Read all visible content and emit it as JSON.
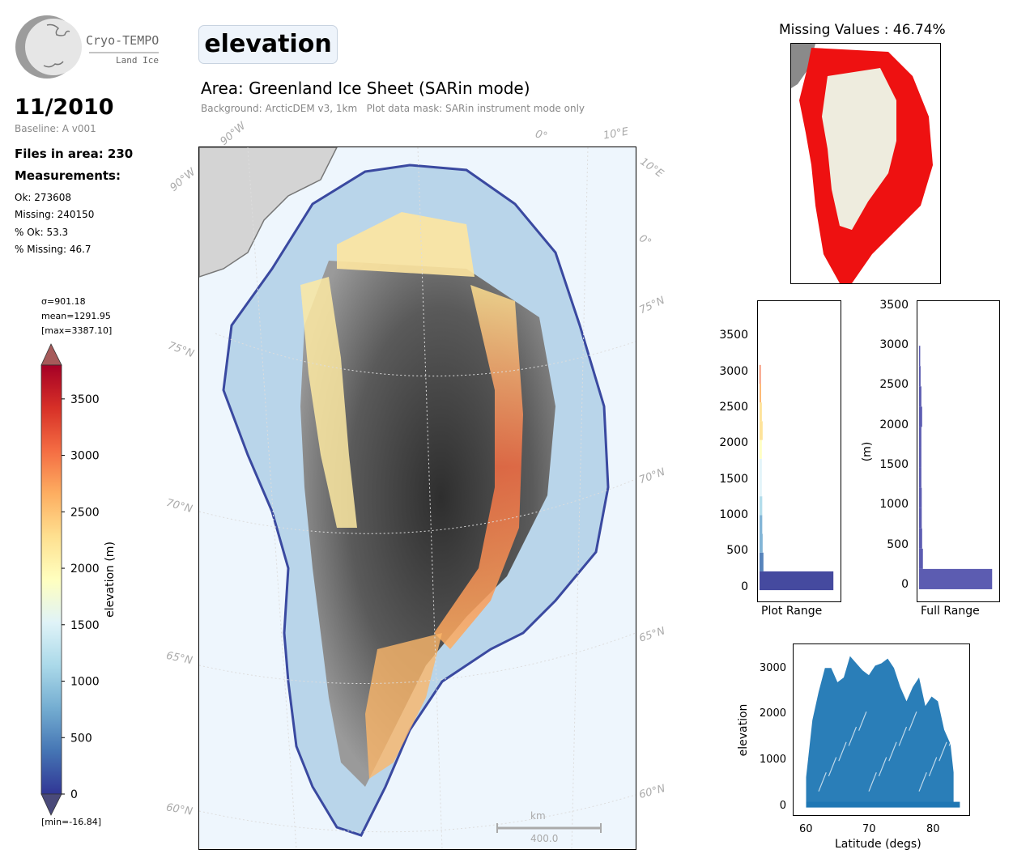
{
  "logo": {
    "name": "Cryo-TEMPO",
    "sub": "Land Ice"
  },
  "date": "11/2010",
  "baseline": "Baseline: A v001",
  "files": "Files in area: 230",
  "measurements_heading": "Measurements:",
  "stats": [
    "Ok: 273608",
    "Missing: 240150",
    "% Ok: 53.3",
    "% Missing: 46.7"
  ],
  "parameter": "elevation",
  "area": "Area: Greenland Ice Sheet (SARin mode)",
  "background_note": "Background: ArcticDEM v3, 1km   Plot data mask: SARin instrument mode only",
  "colorbar": {
    "sigma": "σ=901.18",
    "mean": "mean=1291.95",
    "max": "[max=3387.10]",
    "min": "[min=-16.84]",
    "label": "elevation (m)",
    "ticks": [
      "0",
      "500",
      "1000",
      "1500",
      "2000",
      "2500",
      "3000",
      "3500"
    ],
    "colors": [
      "#313695",
      "#4575b4",
      "#74add1",
      "#abd9e9",
      "#e0f3f8",
      "#ffffbf",
      "#fee090",
      "#fdae61",
      "#f46d43",
      "#d73027",
      "#a50026"
    ]
  },
  "map": {
    "lat_labels": [
      "75°N",
      "70°N",
      "65°N",
      "60°N",
      "75°N",
      "70°N",
      "65°N",
      "60°N"
    ],
    "lon_labels": [
      "90°W",
      "90°W",
      "0°",
      "10°E",
      "10°E",
      "0°"
    ],
    "scalebar_unit": "km",
    "scalebar_value": "400.0"
  },
  "missing_map": {
    "title": "Missing Values : 46.74%"
  },
  "hist_plot": {
    "xlabel": "Plot Range",
    "yticks": [
      "0",
      "500",
      "1000",
      "1500",
      "2000",
      "2500",
      "3000",
      "3500"
    ]
  },
  "hist_full": {
    "xlabel": "Full Range",
    "ylabel": "(m)",
    "yticks": [
      "0",
      "500",
      "1000",
      "1500",
      "2000",
      "2500",
      "3000",
      "3500"
    ]
  },
  "chart_data": [
    {
      "type": "scatter",
      "title": "",
      "xlabel": "Latitude (degs)",
      "ylabel": "elevation",
      "xlim": [
        58,
        86
      ],
      "ylim": [
        -200,
        3400
      ],
      "xticks": [
        "60",
        "70",
        "80"
      ],
      "yticks": [
        "0",
        "1000",
        "2000",
        "3000"
      ],
      "color": "#1f77b4",
      "envelope_x": [
        60,
        61,
        62,
        63,
        64,
        65,
        66,
        67,
        68,
        69,
        70,
        71,
        72,
        73,
        74,
        75,
        76,
        77,
        78,
        79,
        80,
        81,
        82,
        83,
        83.5
      ],
      "envelope_y": [
        600,
        1800,
        2400,
        2900,
        2900,
        2600,
        2700,
        3150,
        3000,
        2850,
        2750,
        2950,
        3000,
        3100,
        2900,
        2500,
        2200,
        2500,
        2700,
        2100,
        2300,
        2200,
        1600,
        1300,
        700
      ]
    },
    {
      "type": "bar",
      "title": "Plot Range",
      "orientation": "horizontal",
      "ylim": [
        -150,
        3850
      ],
      "bins": [
        0,
        250,
        500,
        750,
        1000,
        1250,
        1500,
        1750,
        2000,
        2250,
        2500,
        2750,
        3000
      ],
      "counts": [
        0.95,
        0.05,
        0.04,
        0.035,
        0.035,
        0.03,
        0.03,
        0.03,
        0.04,
        0.03,
        0.02,
        0.015,
        0
      ]
    },
    {
      "type": "bar",
      "title": "Full Range",
      "orientation": "horizontal",
      "ylim": [
        -150,
        3550
      ],
      "bins": [
        0,
        250,
        500,
        750,
        1000,
        1250,
        1500,
        1750,
        2000,
        2250,
        2500,
        2750,
        3000
      ],
      "counts": [
        0.95,
        0.05,
        0.04,
        0.035,
        0.035,
        0.03,
        0.03,
        0.03,
        0.04,
        0.03,
        0.02,
        0.015,
        0
      ]
    }
  ]
}
